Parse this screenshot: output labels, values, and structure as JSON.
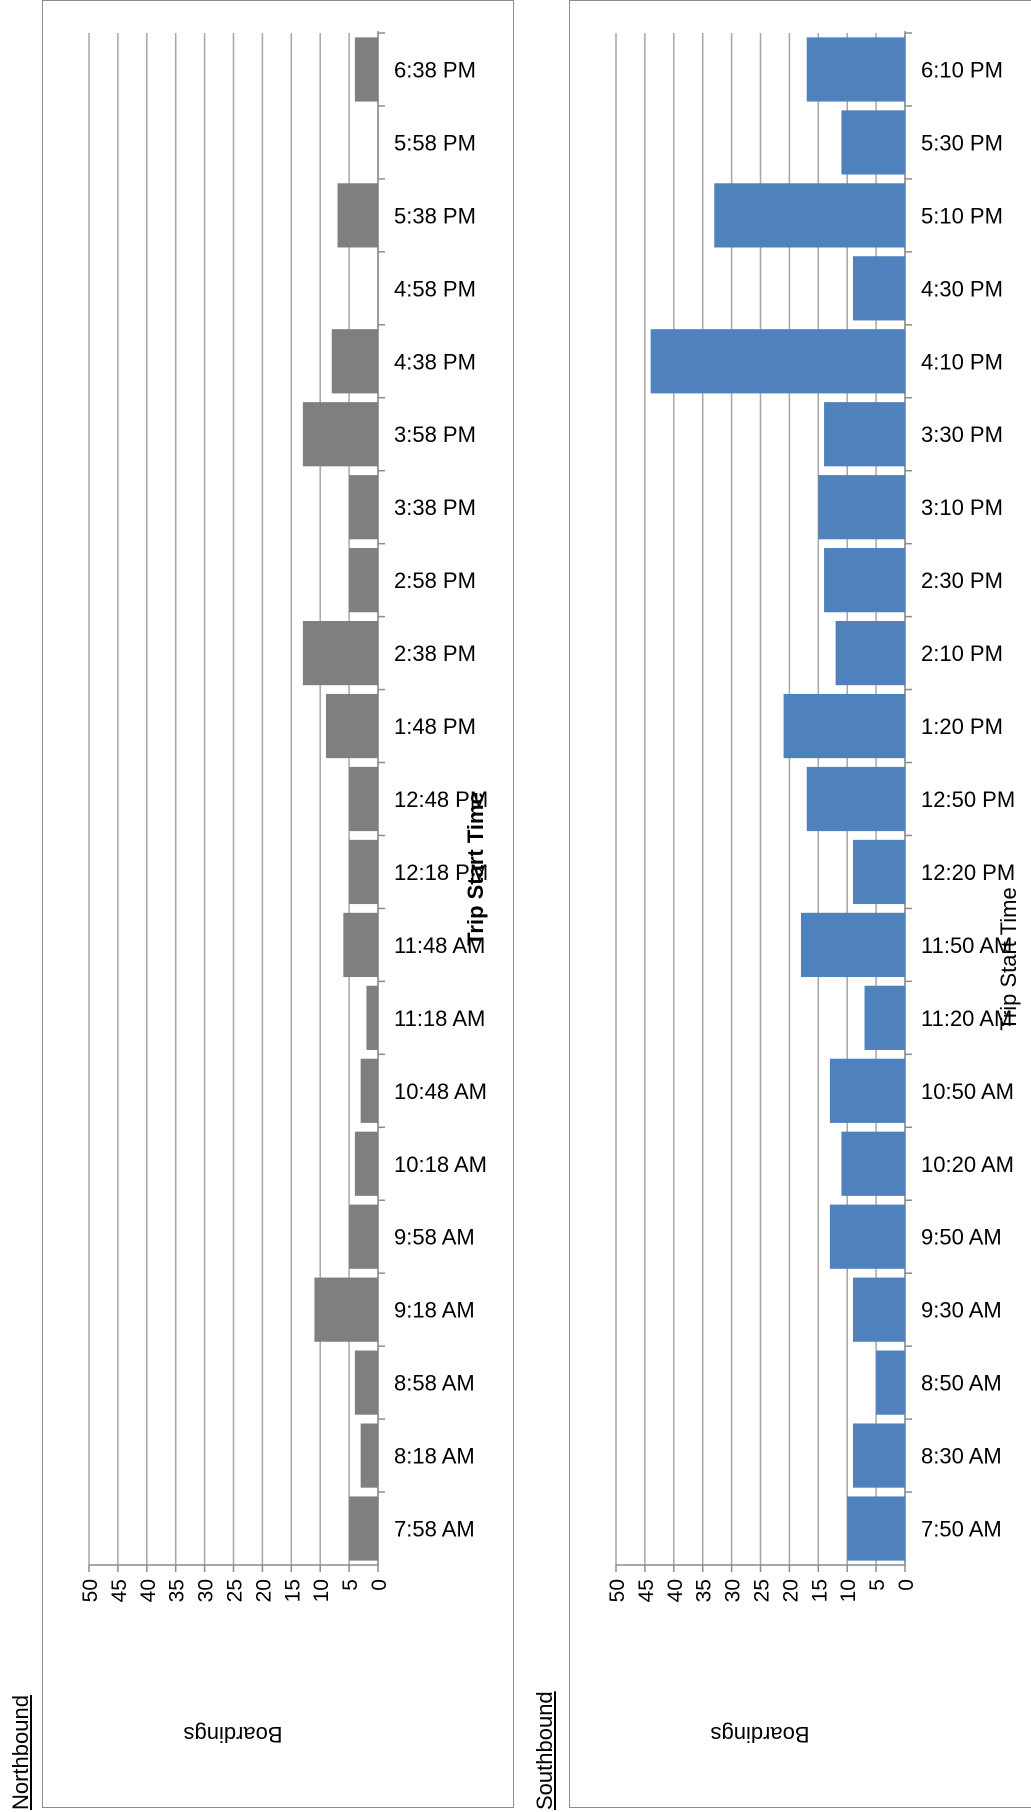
{
  "labels": {
    "northbound": "Northbound",
    "southbound": "Southbound"
  },
  "chart_data": [
    {
      "type": "bar",
      "orientation": "horizontal",
      "title": "",
      "xlabel": "Boardings",
      "ylabel": "Trip Start Time",
      "xlim": [
        0,
        50
      ],
      "x_ticks": [
        0,
        5,
        10,
        15,
        20,
        25,
        30,
        35,
        40,
        45,
        50
      ],
      "grid": true,
      "bar_color": "#7f7f7f",
      "categories": [
        "7:58 AM",
        "8:18 AM",
        "8:58 AM",
        "9:18 AM",
        "9:58 AM",
        "10:18 AM",
        "10:48 AM",
        "11:18 AM",
        "11:48 AM",
        "12:18 PM",
        "12:48 PM",
        "1:48 PM",
        "2:38 PM",
        "2:58 PM",
        "3:38 PM",
        "3:58 PM",
        "4:38 PM",
        "4:58 PM",
        "5:38 PM",
        "5:58 PM",
        "6:38 PM"
      ],
      "values": [
        5,
        3,
        4,
        11,
        5,
        4,
        3,
        2,
        6,
        5,
        5,
        9,
        13,
        5,
        5,
        13,
        8,
        0,
        7,
        0,
        4
      ]
    },
    {
      "type": "bar",
      "orientation": "horizontal",
      "title": "",
      "xlabel": "Boardings",
      "ylabel": "Trip Start Time",
      "xlim": [
        0,
        50
      ],
      "x_ticks": [
        0,
        5,
        10,
        15,
        20,
        25,
        30,
        35,
        40,
        45,
        50
      ],
      "grid": true,
      "bar_color": "#4f81bd",
      "categories": [
        "7:50 AM",
        "8:30 AM",
        "8:50 AM",
        "9:30 AM",
        "9:50 AM",
        "10:20 AM",
        "10:50 AM",
        "11:20 AM",
        "11:50 AM",
        "12:20 PM",
        "12:50 PM",
        "1:20 PM",
        "2:10 PM",
        "2:30 PM",
        "3:10 PM",
        "3:30 PM",
        "4:10 PM",
        "4:30 PM",
        "5:10 PM",
        "5:30 PM",
        "6:10 PM"
      ],
      "values": [
        10,
        9,
        5,
        9,
        13,
        11,
        13,
        7,
        18,
        9,
        17,
        21,
        12,
        14,
        15,
        14,
        44,
        9,
        33,
        11,
        17
      ]
    }
  ]
}
